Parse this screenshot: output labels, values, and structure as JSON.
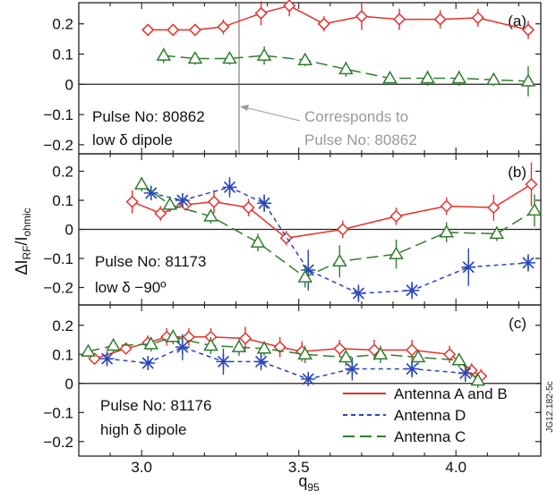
{
  "colors": {
    "antenna_ab": "#e8302a",
    "antenna_d": "#2a46b8",
    "antenna_c": "#2f7d2f",
    "frame": "#222222",
    "annotation_grey": "#9a9a9a"
  },
  "figure": {
    "ylabel_main": "ΔI",
    "ylabel_sub1": "RF",
    "ylabel_mid": "/I",
    "ylabel_sub2": "ohmic",
    "xlabel_main": "q",
    "xlabel_sub": "95",
    "side_label": "JG12.182-5c",
    "legend": {
      "ab": "Antenna A and B",
      "d": "Antenna D",
      "c": "Antenna C"
    }
  },
  "chart_data": [
    {
      "type": "line",
      "panel_label": "(a)",
      "annotation_lines": [
        "Pulse No: 80862",
        "low δ dipole"
      ],
      "callout_lines": [
        "Corresponds to",
        "Pulse No: 80862"
      ],
      "marker_line_x": 3.31,
      "xlim": [
        2.8,
        4.27
      ],
      "ylim": [
        -0.23,
        0.27
      ],
      "yticks": [
        0.2,
        0.1,
        0,
        -0.1,
        -0.2
      ],
      "ytick_labels": [
        "0.2",
        "0.1",
        "0",
        "−0.1",
        "−0.2"
      ],
      "series": [
        {
          "key": "ab",
          "marker": "diamond",
          "dash": "solid",
          "x": [
            3.02,
            3.1,
            3.17,
            3.26,
            3.38,
            3.47,
            3.58,
            3.7,
            3.82,
            3.95,
            4.07,
            4.23
          ],
          "y": [
            0.18,
            0.18,
            0.18,
            0.19,
            0.235,
            0.26,
            0.2,
            0.225,
            0.215,
            0.215,
            0.22,
            0.18
          ],
          "err": [
            0,
            0,
            0,
            0.025,
            0.04,
            0.035,
            0.025,
            0.045,
            0.035,
            0.03,
            0.03,
            0.03
          ]
        },
        {
          "key": "c",
          "marker": "triangle",
          "dash": "long",
          "x": [
            3.07,
            3.17,
            3.28,
            3.39,
            3.52,
            3.65,
            3.79,
            3.91,
            4.01,
            4.12,
            4.23
          ],
          "y": [
            0.095,
            0.085,
            0.085,
            0.095,
            0.08,
            0.05,
            0.02,
            0.02,
            0.02,
            0.015,
            0.01
          ],
          "err": [
            0.025,
            0.02,
            0.02,
            0.03,
            0.02,
            0.025,
            0.015,
            0.025,
            0.025,
            0.02,
            0.05
          ]
        }
      ]
    },
    {
      "type": "line",
      "panel_label": "(b)",
      "annotation_lines": [
        "Pulse No: 81173",
        "low δ −90º"
      ],
      "xlim": [
        2.8,
        4.27
      ],
      "ylim": [
        -0.26,
        0.26
      ],
      "yticks": [
        0.2,
        0.1,
        0,
        -0.1,
        -0.2
      ],
      "ytick_labels": [
        "0.2",
        "0.1",
        "0",
        "−0.1",
        "−0.2"
      ],
      "series": [
        {
          "key": "ab",
          "marker": "diamond",
          "dash": "solid",
          "x": [
            2.97,
            3.06,
            3.14,
            3.23,
            3.34,
            3.46,
            3.64,
            3.81,
            3.97,
            4.12,
            4.24
          ],
          "y": [
            0.095,
            0.055,
            0.085,
            0.095,
            0.075,
            -0.03,
            0.0,
            0.045,
            0.08,
            0.075,
            0.155
          ],
          "err": [
            0.04,
            0.025,
            0.02,
            0.04,
            0.03,
            0.025,
            0.03,
            0.03,
            0.03,
            0.045,
            0.075
          ]
        },
        {
          "key": "d",
          "marker": "star",
          "dash": "short",
          "x": [
            3.03,
            3.13,
            3.28,
            3.39,
            3.53,
            3.69,
            3.86,
            4.04,
            4.23
          ],
          "y": [
            0.125,
            0.1,
            0.145,
            0.09,
            -0.14,
            -0.22,
            -0.21,
            -0.13,
            -0.115
          ],
          "err": [
            0.025,
            0.025,
            0.035,
            0.03,
            0.07,
            0.03,
            0.03,
            0.065,
            0.03
          ]
        },
        {
          "key": "c",
          "marker": "triangle",
          "dash": "long",
          "x": [
            3.0,
            3.09,
            3.22,
            3.37,
            3.52,
            3.63,
            3.81,
            3.97,
            4.13,
            4.25
          ],
          "y": [
            0.155,
            0.085,
            0.045,
            -0.045,
            -0.165,
            -0.11,
            -0.085,
            -0.01,
            -0.015,
            0.065
          ],
          "err": [
            0.025,
            0.025,
            0.025,
            0.03,
            0.035,
            0.055,
            0.05,
            0.035,
            0.025,
            0.055
          ]
        }
      ]
    },
    {
      "type": "line",
      "panel_label": "(c)",
      "annotation_lines": [
        "Pulse No: 81176",
        "high δ dipole"
      ],
      "xlim": [
        2.8,
        4.27
      ],
      "ylim": [
        -0.25,
        0.27
      ],
      "yticks": [
        0.2,
        0.1,
        0,
        -0.1,
        -0.2
      ],
      "ytick_labels": [
        "0.2",
        "0.1",
        "0",
        "−0.1",
        "−0.2"
      ],
      "series": [
        {
          "key": "ab",
          "marker": "diamond",
          "dash": "solid",
          "x": [
            2.85,
            2.95,
            3.02,
            3.08,
            3.15,
            3.22,
            3.33,
            3.44,
            3.51,
            3.63,
            3.74,
            3.86,
            3.98,
            4.05,
            4.08
          ],
          "y": [
            0.085,
            0.12,
            0.14,
            0.16,
            0.16,
            0.16,
            0.155,
            0.125,
            0.11,
            0.12,
            0.115,
            0.115,
            0.1,
            0.045,
            0.025
          ],
          "err": [
            0.015,
            0.02,
            0.025,
            0.03,
            0.03,
            0.03,
            0.04,
            0.035,
            0.035,
            0.03,
            0.035,
            0.035,
            0.03,
            0.025,
            0.025
          ]
        },
        {
          "key": "d",
          "marker": "star",
          "dash": "short",
          "x": [
            2.89,
            3.02,
            3.13,
            3.26,
            3.38,
            3.53,
            3.67,
            3.86,
            4.03
          ],
          "y": [
            0.085,
            0.07,
            0.125,
            0.075,
            0.075,
            0.015,
            0.05,
            0.05,
            0.035
          ],
          "err": [
            0.025,
            0.02,
            0.045,
            0.045,
            0.03,
            0.02,
            0.04,
            0.03,
            0.03
          ]
        },
        {
          "key": "c",
          "marker": "triangle",
          "dash": "long",
          "x": [
            2.83,
            2.91,
            3.03,
            3.1,
            3.22,
            3.31,
            3.39,
            3.52,
            3.65,
            3.76,
            3.88,
            4.01,
            4.07
          ],
          "y": [
            0.11,
            0.13,
            0.135,
            0.16,
            0.13,
            0.125,
            0.12,
            0.1,
            0.09,
            0.1,
            0.09,
            0.08,
            0.01
          ],
          "err": [
            0.02,
            0.025,
            0.025,
            0.025,
            0.03,
            0.03,
            0.025,
            0.03,
            0.03,
            0.03,
            0.025,
            0.025,
            0.025
          ]
        }
      ]
    }
  ],
  "x_axis": {
    "ticks": [
      3.0,
      3.5,
      4.0
    ],
    "tick_labels": [
      "3.0",
      "3.5",
      "4.0"
    ]
  }
}
